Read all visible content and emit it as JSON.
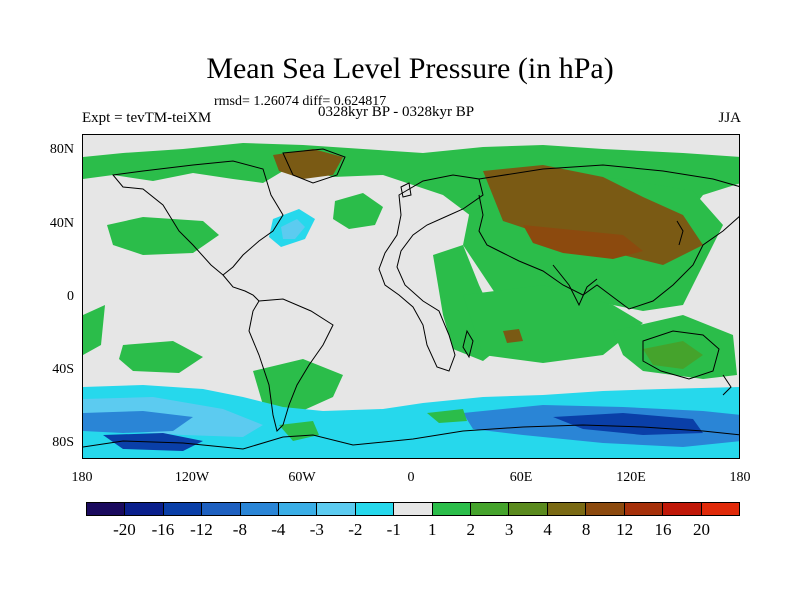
{
  "title": "Mean Sea Level Pressure (in hPa)",
  "stats": "rmsd= 1.26074  diff= 0.624817",
  "expt": "Expt = tevTM-teiXM",
  "period": "0328kyr BP - 0328kyr BP",
  "season": "JJA",
  "lat_labels": [
    "80N",
    "40N",
    "0",
    "40S",
    "80S"
  ],
  "lon_labels": [
    "180",
    "120W",
    "60W",
    "0",
    "60E",
    "120E",
    "180"
  ],
  "colorbar": {
    "labels": [
      "-20",
      "-16",
      "-12",
      "-8",
      "-4",
      "-3",
      "-2",
      "-1",
      "1",
      "2",
      "3",
      "4",
      "8",
      "12",
      "16",
      "20"
    ],
    "colors": [
      "#1a0a5e",
      "#0a1f8c",
      "#0a3fa8",
      "#1e60c0",
      "#2a85d6",
      "#3aaee6",
      "#5ccbf0",
      "#26d8ec",
      "#e6e6e6",
      "#2bbd4a",
      "#45a32c",
      "#5a8a1e",
      "#7a6a14",
      "#8c4a0e",
      "#a6300a",
      "#c01808",
      "#e02a0a"
    ]
  },
  "colors": {
    "background": "#e6e6e6",
    "green": "#2bbd4a",
    "dark_green": "#5a8a1e",
    "brown": "#7a5a14",
    "cyan": "#26d8ec",
    "light_blue": "#5ccbf0",
    "blue": "#2a85d6",
    "dark_blue": "#0a3fa8"
  }
}
